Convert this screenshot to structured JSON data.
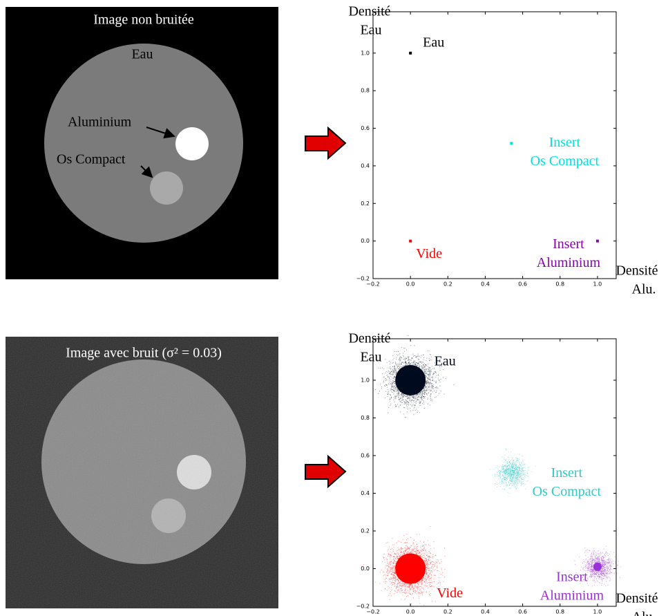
{
  "images": [
    {
      "title": "Image non bruitée",
      "labels": [
        "Eau",
        "Aluminium",
        "Os Compact"
      ]
    },
    {
      "title": "Image avec bruit (σ² = 0.03)"
    }
  ],
  "chart_data": [
    {
      "type": "scatter",
      "xlim": [
        -0.2,
        1.1
      ],
      "ylim": [
        -0.2,
        1.22
      ],
      "xticks": [
        {
          "value": -0.2,
          "label": "−0.2"
        },
        {
          "value": 0,
          "label": "0.0"
        },
        {
          "value": 0.2,
          "label": "0.2"
        },
        {
          "value": 0.4,
          "label": "0.4"
        },
        {
          "value": 0.6,
          "label": "0.6"
        },
        {
          "value": 0.8,
          "label": "0.8"
        },
        {
          "value": 1,
          "label": "1.0"
        }
      ],
      "yticks": [
        {
          "value": -0.2,
          "label": "−0.2"
        },
        {
          "value": 0,
          "label": "0.0"
        },
        {
          "value": 0.2,
          "label": "0.2"
        },
        {
          "value": 0.4,
          "label": "0.4"
        },
        {
          "value": 0.6,
          "label": "0.6"
        },
        {
          "value": 0.8,
          "label": "0.8"
        },
        {
          "value": 1,
          "label": "1.0"
        }
      ],
      "xlabel": [
        "Densité",
        "Alu."
      ],
      "ylabel": [
        "Densité",
        "Eau"
      ],
      "series": [
        {
          "annotation": [
            "Eau"
          ],
          "color": "#000000",
          "x": [
            0
          ],
          "values": [
            1
          ]
        },
        {
          "annotation": [
            "Insert",
            "Os Compact"
          ],
          "color": "#00e0e0",
          "x": [
            0.54
          ],
          "values": [
            0.52
          ]
        },
        {
          "annotation": [
            "Vide"
          ],
          "color": "#ff0000",
          "x": [
            0
          ],
          "values": [
            0
          ]
        },
        {
          "annotation": [
            "Insert",
            "Aluminium"
          ],
          "color": "#8b00b0",
          "x": [
            1
          ],
          "values": [
            0
          ]
        }
      ]
    },
    {
      "type": "cloud",
      "xlim": [
        -0.2,
        1.1
      ],
      "ylim": [
        -0.2,
        1.22
      ],
      "xticks": [
        {
          "value": -0.2,
          "label": "−0.2"
        },
        {
          "value": 0,
          "label": "0.0"
        },
        {
          "value": 0.2,
          "label": "0.2"
        },
        {
          "value": 0.4,
          "label": "0.4"
        },
        {
          "value": 0.6,
          "label": "0.6"
        },
        {
          "value": 0.8,
          "label": "0.8"
        },
        {
          "value": 1,
          "label": "1.0"
        }
      ],
      "yticks": [
        {
          "value": -0.2,
          "label": "−0.2"
        },
        {
          "value": 0,
          "label": "0.0"
        },
        {
          "value": 0.2,
          "label": "0.2"
        },
        {
          "value": 0.4,
          "label": "0.4"
        },
        {
          "value": 0.6,
          "label": "0.6"
        },
        {
          "value": 0.8,
          "label": "0.8"
        },
        {
          "value": 1,
          "label": "1.0"
        }
      ],
      "xlabel": [
        "Densité",
        "Alu."
      ],
      "ylabel": [
        "Densité",
        "Eau"
      ],
      "series": [
        {
          "annotation": [
            "Eau"
          ],
          "color": "#000a1e",
          "x": [
            0
          ],
          "values": [
            1
          ]
        },
        {
          "annotation": [
            "Insert",
            "Os Compact"
          ],
          "color": "#30c8c8",
          "x": [
            0.54
          ],
          "values": [
            0.51
          ]
        },
        {
          "annotation": [
            "Vide"
          ],
          "color": "#ff0000",
          "x": [
            0
          ],
          "values": [
            0
          ]
        },
        {
          "annotation": [
            "Insert",
            "Aluminium"
          ],
          "color": "#9a30d8",
          "x": [
            1
          ],
          "values": [
            0.01
          ]
        }
      ]
    }
  ]
}
